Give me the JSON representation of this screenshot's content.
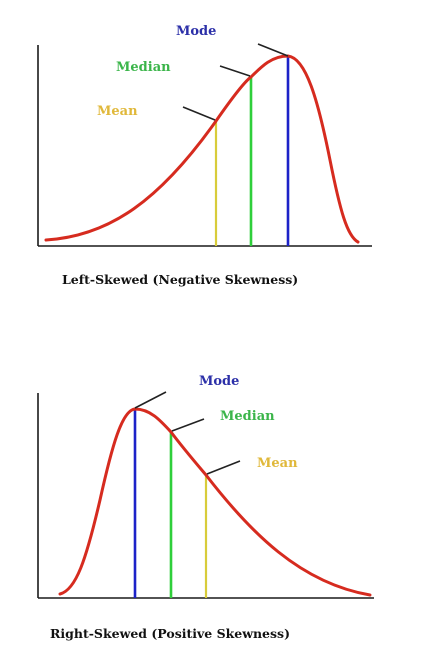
{
  "colors": {
    "axis": "#1a1a1a",
    "curve": "#d62b1f",
    "mode": "#1c22c8",
    "median": "#2fcf3a",
    "mean": "#d8cc3a",
    "mode_label": "#2b2fa8",
    "median_label": "#3bb54a",
    "mean_label": "#e0b83a",
    "pointer": "#222222",
    "caption": "#111111"
  },
  "diagrams": [
    {
      "id": "left",
      "caption": "Left-Skewed (Negative Skewness)",
      "labels": {
        "mode": "Mode",
        "median": "Median",
        "mean": "Mean"
      }
    },
    {
      "id": "right",
      "caption": "Right-Skewed (Positive Skewness)",
      "labels": {
        "mode": "Mode",
        "median": "Median",
        "mean": "Mean"
      }
    }
  ]
}
